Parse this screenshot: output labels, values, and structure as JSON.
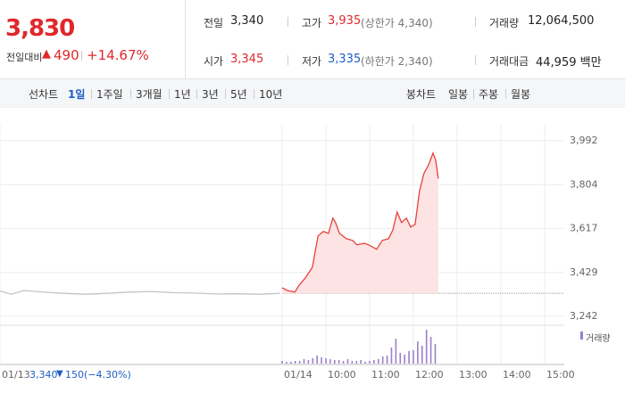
{
  "header": {
    "price": "3,830",
    "change_label": "전일대비",
    "change": "490",
    "change_pct": "+14.67%"
  },
  "stats": [
    [
      {
        "label": "전일",
        "value": "3,340"
      },
      {
        "label": "고가",
        "value": "3,935",
        "extra": "(상한가 4,340)"
      },
      {
        "label": "거래량",
        "value": "12,064,500"
      }
    ],
    [
      {
        "label": "시가",
        "value": "3,345"
      },
      {
        "label": "저가",
        "value": "3,335",
        "extra": "(하한가 2,340)"
      },
      {
        "label": "거래대금",
        "value": "44,959 백만"
      }
    ]
  ],
  "tabs": {
    "line_label": "선차트",
    "line_options": [
      "1일",
      "1주일",
      "3개월",
      "1년",
      "3년",
      "5년",
      "10년"
    ],
    "candle_label": "봉차트",
    "candle_options": [
      "일봉",
      "주봉",
      "월봉"
    ]
  },
  "prev_day_info": {
    "close": "3,340",
    "change": "150",
    "change_pct": "(−4.30%)"
  },
  "chart_data": [
    {
      "type": "line",
      "grid": true,
      "base_value": 3340,
      "xlim": [
        -6.45,
        6.45
      ],
      "ylim": [
        3215,
        4060
      ],
      "xticks": [
        {
          "value": -6.45,
          "label": "01/13"
        },
        {
          "value": 0,
          "label": "01/14"
        },
        {
          "value": 1,
          "label": "10:00"
        },
        {
          "value": 2,
          "label": "11:00"
        },
        {
          "value": 3,
          "label": "12:00"
        },
        {
          "value": 4,
          "label": "13:00"
        },
        {
          "value": 5,
          "label": "14:00"
        },
        {
          "value": 6,
          "label": "15:00"
        }
      ],
      "yticks": [
        {
          "value": 3992,
          "label": "3,992"
        },
        {
          "value": 3804,
          "label": "3,804"
        },
        {
          "value": 3617,
          "label": "3,617"
        },
        {
          "value": 3429,
          "label": "3,429"
        },
        {
          "value": 3242,
          "label": "3,242"
        }
      ],
      "series": [
        {
          "color": "#c4c4c4",
          "x": [
            -6.45,
            -6.2,
            -5.9,
            -5.5,
            -5,
            -4.5,
            -4,
            -3.5,
            -3,
            -2.5,
            -2,
            -1.5,
            -1,
            -0.5,
            -0.05
          ],
          "values": [
            3350,
            3336,
            3352,
            3346,
            3340,
            3336,
            3340,
            3345,
            3348,
            3343,
            3341,
            3337,
            3338,
            3336,
            3340
          ]
        },
        {
          "color": "#e8413c",
          "fill": "#fde3e3",
          "x": [
            0,
            0.12,
            0.29,
            0.39,
            0.53,
            0.69,
            0.82,
            0.94,
            1.06,
            1.16,
            1.22,
            1.31,
            1.47,
            1.61,
            1.71,
            1.88,
            2.02,
            2.16,
            2.29,
            2.43,
            2.53,
            2.63,
            2.73,
            2.84,
            2.94,
            3.04,
            3.14,
            3.24,
            3.35,
            3.45,
            3.51,
            3.57
          ],
          "values": [
            3364,
            3352,
            3345,
            3375,
            3406,
            3451,
            3585,
            3604,
            3596,
            3661,
            3642,
            3596,
            3573,
            3566,
            3547,
            3554,
            3543,
            3528,
            3566,
            3573,
            3611,
            3687,
            3642,
            3661,
            3623,
            3634,
            3775,
            3851,
            3889,
            3939,
            3908,
            3830
          ]
        }
      ]
    },
    {
      "type": "bar",
      "xlim": [
        -6.45,
        6.45
      ],
      "ylim": [
        0,
        500000
      ],
      "series": [
        {
          "name": "거래량",
          "color": "#9b80cc",
          "x": [
            0,
            0.1,
            0.2,
            0.3,
            0.4,
            0.5,
            0.6,
            0.7,
            0.8,
            0.9,
            1,
            1.1,
            1.2,
            1.3,
            1.4,
            1.5,
            1.6,
            1.7,
            1.8,
            1.9,
            2,
            2.1,
            2.2,
            2.3,
            2.4,
            2.5,
            2.6,
            2.7,
            2.8,
            2.9,
            3,
            3.1,
            3.2,
            3.3,
            3.4,
            3.5
          ],
          "values": [
            37500,
            25000,
            25000,
            37500,
            37500,
            62500,
            50000,
            75000,
            112500,
            87500,
            75000,
            62500,
            50000,
            50000,
            37500,
            62500,
            37500,
            37500,
            50000,
            25000,
            37500,
            50000,
            62500,
            100000,
            112500,
            225000,
            350000,
            150000,
            125000,
            175000,
            187500,
            312500,
            250000,
            475000,
            375000,
            275000
          ]
        }
      ]
    }
  ]
}
